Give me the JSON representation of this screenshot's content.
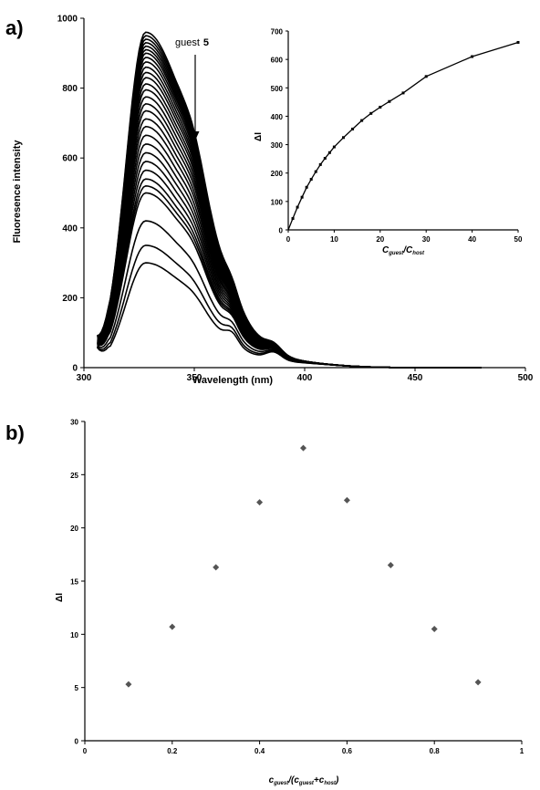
{
  "panel_a_label": "a)",
  "panel_b_label": "b)",
  "chart_data": [
    {
      "type": "line",
      "xlabel": "Wavelength (nm)",
      "ylabel": "Fluoresence intensity",
      "xlim": [
        300,
        500
      ],
      "ylim": [
        0,
        1000
      ],
      "xticks": [
        "300",
        "350",
        "400",
        "450",
        "500"
      ],
      "yticks": [
        "0",
        "200",
        "400",
        "600",
        "800",
        "1000"
      ],
      "annotation": {
        "text": "guest",
        "bold": "5"
      },
      "peak_intensities": [
        960,
        950,
        940,
        930,
        920,
        910,
        900,
        888,
        875,
        860,
        845,
        830,
        812,
        795,
        775,
        755,
        735,
        712,
        690,
        665,
        640,
        615,
        590,
        565,
        540,
        520,
        500,
        420,
        350,
        300
      ]
    },
    {
      "type": "line",
      "inset": true,
      "xlabel": "Cguest/Chost",
      "ylabel": "ΔI",
      "xlim": [
        0,
        50
      ],
      "ylim": [
        0,
        700
      ],
      "xticks": [
        "0",
        "10",
        "20",
        "30",
        "40",
        "50"
      ],
      "yticks": [
        "0",
        "100",
        "200",
        "300",
        "400",
        "500",
        "600",
        "700"
      ],
      "x": [
        1,
        2,
        3,
        4,
        5,
        6,
        7,
        8,
        9,
        10,
        12,
        14,
        16,
        18,
        20,
        22,
        25,
        30,
        40,
        50
      ],
      "y": [
        40,
        80,
        115,
        150,
        178,
        205,
        230,
        252,
        272,
        292,
        325,
        355,
        385,
        410,
        432,
        452,
        482,
        540,
        610,
        660
      ]
    },
    {
      "type": "scatter",
      "xlabel": "cguest/(cguest+chost)",
      "ylabel": "ΔI",
      "xlim": [
        0,
        1
      ],
      "ylim": [
        0,
        30
      ],
      "xticks": [
        "0",
        "0.2",
        "0.4",
        "0.6",
        "0.8",
        "1"
      ],
      "yticks": [
        "0",
        "5",
        "10",
        "15",
        "20",
        "25",
        "30"
      ],
      "x": [
        0.1,
        0.2,
        0.3,
        0.4,
        0.5,
        0.6,
        0.7,
        0.8,
        0.9
      ],
      "y": [
        5.3,
        10.7,
        16.3,
        22.4,
        27.5,
        22.6,
        16.5,
        10.5,
        5.5
      ]
    }
  ]
}
